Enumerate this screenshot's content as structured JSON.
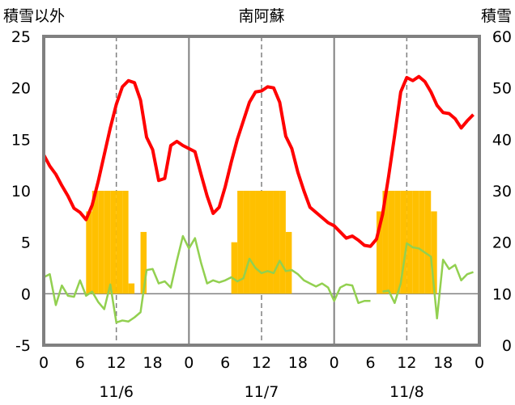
{
  "chart_data": {
    "type": "bar+line",
    "title": "南阿蘇",
    "ylabel_left": "積雪以外",
    "ylabel_right": "積雪",
    "y_left": {
      "min": -5,
      "max": 25,
      "ticks": [
        -5,
        0,
        5,
        10,
        15,
        20,
        25
      ]
    },
    "y_right": {
      "min": 0,
      "max": 60,
      "ticks": [
        0,
        10,
        20,
        30,
        40,
        50,
        60
      ]
    },
    "x": {
      "min": 0,
      "max": 72,
      "hour_ticks": [
        0,
        6,
        12,
        18,
        0,
        6,
        12,
        18,
        0,
        6,
        12,
        18,
        0
      ]
    },
    "days": [
      "11/6",
      "11/7",
      "11/8"
    ],
    "colors": {
      "temperature": "#ff0000",
      "precipitation": "#ffc000",
      "wind": "#92d050",
      "snow": "#7030a0",
      "frame": "#808080"
    },
    "precipitation": [
      {
        "h": 7.5,
        "v": 8
      },
      {
        "h": 8.5,
        "v": 10
      },
      {
        "h": 9.5,
        "v": 10
      },
      {
        "h": 10.5,
        "v": 10
      },
      {
        "h": 11.5,
        "v": 10
      },
      {
        "h": 12.5,
        "v": 10
      },
      {
        "h": 13.5,
        "v": 10
      },
      {
        "h": 14.5,
        "v": 1
      },
      {
        "h": 16.5,
        "v": 6
      },
      {
        "h": 31.5,
        "v": 5
      },
      {
        "h": 32.5,
        "v": 10
      },
      {
        "h": 33.5,
        "v": 10
      },
      {
        "h": 34.5,
        "v": 10
      },
      {
        "h": 35.5,
        "v": 10
      },
      {
        "h": 36.5,
        "v": 10
      },
      {
        "h": 37.5,
        "v": 10
      },
      {
        "h": 38.5,
        "v": 10
      },
      {
        "h": 39.5,
        "v": 10
      },
      {
        "h": 40.5,
        "v": 6
      },
      {
        "h": 55.5,
        "v": 8
      },
      {
        "h": 56.5,
        "v": 10
      },
      {
        "h": 57.5,
        "v": 10
      },
      {
        "h": 58.5,
        "v": 10
      },
      {
        "h": 59.5,
        "v": 10
      },
      {
        "h": 60.5,
        "v": 10
      },
      {
        "h": 61.5,
        "v": 10
      },
      {
        "h": 62.5,
        "v": 10
      },
      {
        "h": 63.5,
        "v": 10
      },
      {
        "h": 64.5,
        "v": 8
      }
    ],
    "temperature": [
      [
        0,
        13.5
      ],
      [
        1,
        12.4
      ],
      [
        2,
        11.6
      ],
      [
        3,
        10.5
      ],
      [
        4,
        9.5
      ],
      [
        5,
        8.3
      ],
      [
        6,
        7.9
      ],
      [
        7,
        7.2
      ],
      [
        8,
        8.6
      ],
      [
        9,
        10.9
      ],
      [
        10,
        13.5
      ],
      [
        11,
        16.1
      ],
      [
        12,
        18.4
      ],
      [
        13,
        20.1
      ],
      [
        14,
        20.7
      ],
      [
        15,
        20.5
      ],
      [
        16,
        18.8
      ],
      [
        17,
        15.2
      ],
      [
        18,
        14.0
      ],
      [
        19,
        11.0
      ],
      [
        20,
        11.2
      ],
      [
        21,
        14.4
      ],
      [
        22,
        14.8
      ],
      [
        23,
        14.4
      ],
      [
        24,
        14.1
      ],
      [
        25,
        13.8
      ],
      [
        26,
        11.6
      ],
      [
        27,
        9.5
      ],
      [
        28,
        7.8
      ],
      [
        29,
        8.4
      ],
      [
        30,
        10.4
      ],
      [
        31,
        12.8
      ],
      [
        32,
        15.0
      ],
      [
        33,
        16.8
      ],
      [
        34,
        18.6
      ],
      [
        35,
        19.6
      ],
      [
        36,
        19.7
      ],
      [
        37,
        20.1
      ],
      [
        38,
        20.0
      ],
      [
        39,
        18.6
      ],
      [
        40,
        15.3
      ],
      [
        41,
        14.1
      ],
      [
        42,
        11.8
      ],
      [
        43,
        10.0
      ],
      [
        44,
        8.4
      ],
      [
        45,
        7.9
      ],
      [
        46,
        7.4
      ],
      [
        47,
        6.9
      ],
      [
        48,
        6.6
      ],
      [
        49,
        6.0
      ],
      [
        50,
        5.4
      ],
      [
        51,
        5.6
      ],
      [
        52,
        5.2
      ],
      [
        53,
        4.7
      ],
      [
        54,
        4.6
      ],
      [
        55,
        5.3
      ],
      [
        56,
        7.7
      ],
      [
        57,
        11.4
      ],
      [
        58,
        15.4
      ],
      [
        59,
        19.6
      ],
      [
        60,
        21.0
      ],
      [
        61,
        20.7
      ],
      [
        62,
        21.1
      ],
      [
        63,
        20.6
      ],
      [
        64,
        19.6
      ],
      [
        65,
        18.3
      ],
      [
        66,
        17.6
      ],
      [
        67,
        17.5
      ],
      [
        68,
        17.0
      ],
      [
        69,
        16.1
      ],
      [
        70,
        16.8
      ],
      [
        71,
        17.4
      ]
    ],
    "wind": [
      [
        0,
        1.6
      ],
      [
        1,
        1.9
      ],
      [
        2,
        -1.1
      ],
      [
        3,
        0.8
      ],
      [
        4,
        -0.2
      ],
      [
        5,
        -0.3
      ],
      [
        6,
        1.3
      ],
      [
        7,
        -0.2
      ],
      [
        8,
        0.2
      ],
      [
        9,
        -0.8
      ],
      [
        10,
        -1.5
      ],
      [
        11,
        0.9
      ],
      [
        12,
        -2.8
      ],
      [
        13,
        -2.6
      ],
      [
        14,
        -2.7
      ],
      [
        15,
        -2.3
      ],
      [
        16,
        -1.8
      ],
      [
        17,
        2.3
      ],
      [
        18,
        2.4
      ],
      [
        19,
        1.0
      ],
      [
        20,
        1.2
      ],
      [
        21,
        0.6
      ],
      [
        22,
        3.2
      ],
      [
        23,
        5.6
      ],
      [
        24,
        4.4
      ],
      [
        25,
        5.4
      ],
      [
        26,
        3.0
      ],
      [
        27,
        1.0
      ],
      [
        28,
        1.3
      ],
      [
        29,
        1.1
      ],
      [
        30,
        1.3
      ],
      [
        31,
        1.6
      ],
      [
        32,
        1.2
      ],
      [
        33,
        1.5
      ],
      [
        34,
        3.4
      ],
      [
        35,
        2.5
      ],
      [
        36,
        2.0
      ],
      [
        37,
        2.2
      ],
      [
        38,
        2.0
      ],
      [
        39,
        3.2
      ],
      [
        40,
        2.2
      ],
      [
        41,
        2.3
      ],
      [
        42,
        1.9
      ],
      [
        43,
        1.3
      ],
      [
        44,
        1.0
      ],
      [
        45,
        0.7
      ],
      [
        46,
        1.0
      ],
      [
        47,
        0.6
      ],
      [
        48,
        -0.7
      ],
      [
        49,
        0.6
      ],
      [
        50,
        0.9
      ],
      [
        51,
        0.8
      ],
      [
        52,
        -0.9
      ],
      [
        53,
        -0.7
      ],
      [
        54,
        -0.7
      ],
      [
        56,
        0.2
      ],
      [
        57,
        0.3
      ],
      [
        58,
        -0.9
      ],
      [
        59,
        1.0
      ],
      [
        60,
        4.9
      ],
      [
        61,
        4.5
      ],
      [
        62,
        4.4
      ],
      [
        63,
        4.0
      ],
      [
        64,
        3.6
      ],
      [
        65,
        -2.4
      ],
      [
        66,
        3.3
      ],
      [
        67,
        2.4
      ],
      [
        68,
        2.8
      ],
      [
        69,
        1.3
      ],
      [
        70,
        1.9
      ],
      [
        71,
        2.1
      ]
    ],
    "snow": [
      [
        16,
        0
      ],
      [
        71.5,
        0
      ]
    ],
    "gridlines": {
      "solid_x": [
        24,
        48
      ],
      "dashed_x": [
        12,
        36,
        60
      ]
    }
  }
}
